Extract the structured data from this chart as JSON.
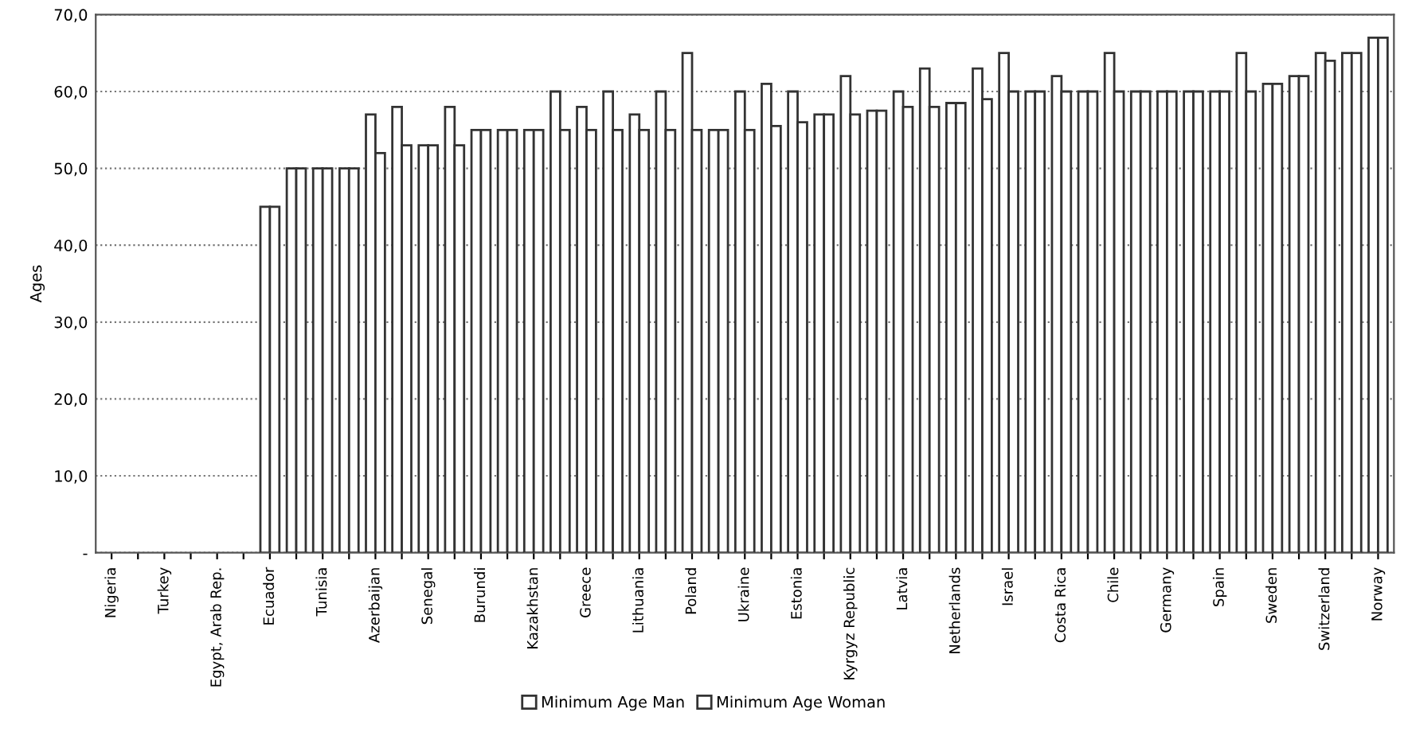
{
  "chart_data": {
    "type": "bar",
    "ylabel": "Ages",
    "categories": [
      "Nigeria",
      null,
      "Turkey",
      null,
      "Egypt, Arab Rep.",
      null,
      "Ecuador",
      null,
      "Tunisia",
      null,
      "Azerbaijan",
      null,
      "Senegal",
      null,
      "Burundi",
      null,
      "Kazakhstan",
      null,
      "Greece",
      null,
      "Lithuania",
      null,
      "Poland",
      null,
      "Ukraine",
      null,
      "Estonia",
      null,
      "Kyrgyz Republic",
      null,
      "Latvia",
      null,
      "Netherlands",
      null,
      "Israel",
      null,
      "Costa Rica",
      null,
      "Chile",
      null,
      "Germany",
      null,
      "Spain",
      null,
      "Sweden",
      null,
      "Switzerland",
      null,
      "Norway"
    ],
    "series": [
      {
        "name": "Minimum Age Man",
        "color": "#ffffff",
        "values": [
          null,
          null,
          null,
          null,
          null,
          null,
          45,
          50,
          50,
          50,
          57,
          58,
          53,
          58,
          55,
          55,
          55,
          60,
          58,
          60,
          57,
          60,
          65,
          55,
          60,
          61,
          60,
          57,
          62,
          57.5,
          60,
          63,
          58.5,
          63,
          65,
          60,
          62,
          60,
          65,
          60,
          60,
          60,
          60,
          65,
          61,
          62,
          65,
          65,
          67
        ]
      },
      {
        "name": "Minimum Age Woman",
        "color": "#ffffff",
        "values": [
          null,
          null,
          null,
          null,
          null,
          null,
          45,
          50,
          50,
          50,
          52,
          53,
          53,
          53,
          55,
          55,
          55,
          55,
          55,
          55,
          55,
          55,
          55,
          55,
          55,
          55.5,
          56,
          57,
          57,
          57.5,
          58,
          58,
          58.5,
          59,
          60,
          60,
          60,
          60,
          60,
          60,
          60,
          60,
          60,
          60,
          61,
          62,
          64,
          65,
          67
        ]
      }
    ],
    "ylim": [
      0,
      70
    ],
    "yticks": [
      {
        "value": 0,
        "label": "-"
      },
      {
        "value": 10,
        "label": "10,0"
      },
      {
        "value": 20,
        "label": "20,0"
      },
      {
        "value": 30,
        "label": "30,0"
      },
      {
        "value": 40,
        "label": "40,0"
      },
      {
        "value": 50,
        "label": "50,0"
      },
      {
        "value": 60,
        "label": "60,0"
      },
      {
        "value": 70,
        "label": "70,0"
      }
    ],
    "grid": "y",
    "legend": "bottom"
  }
}
